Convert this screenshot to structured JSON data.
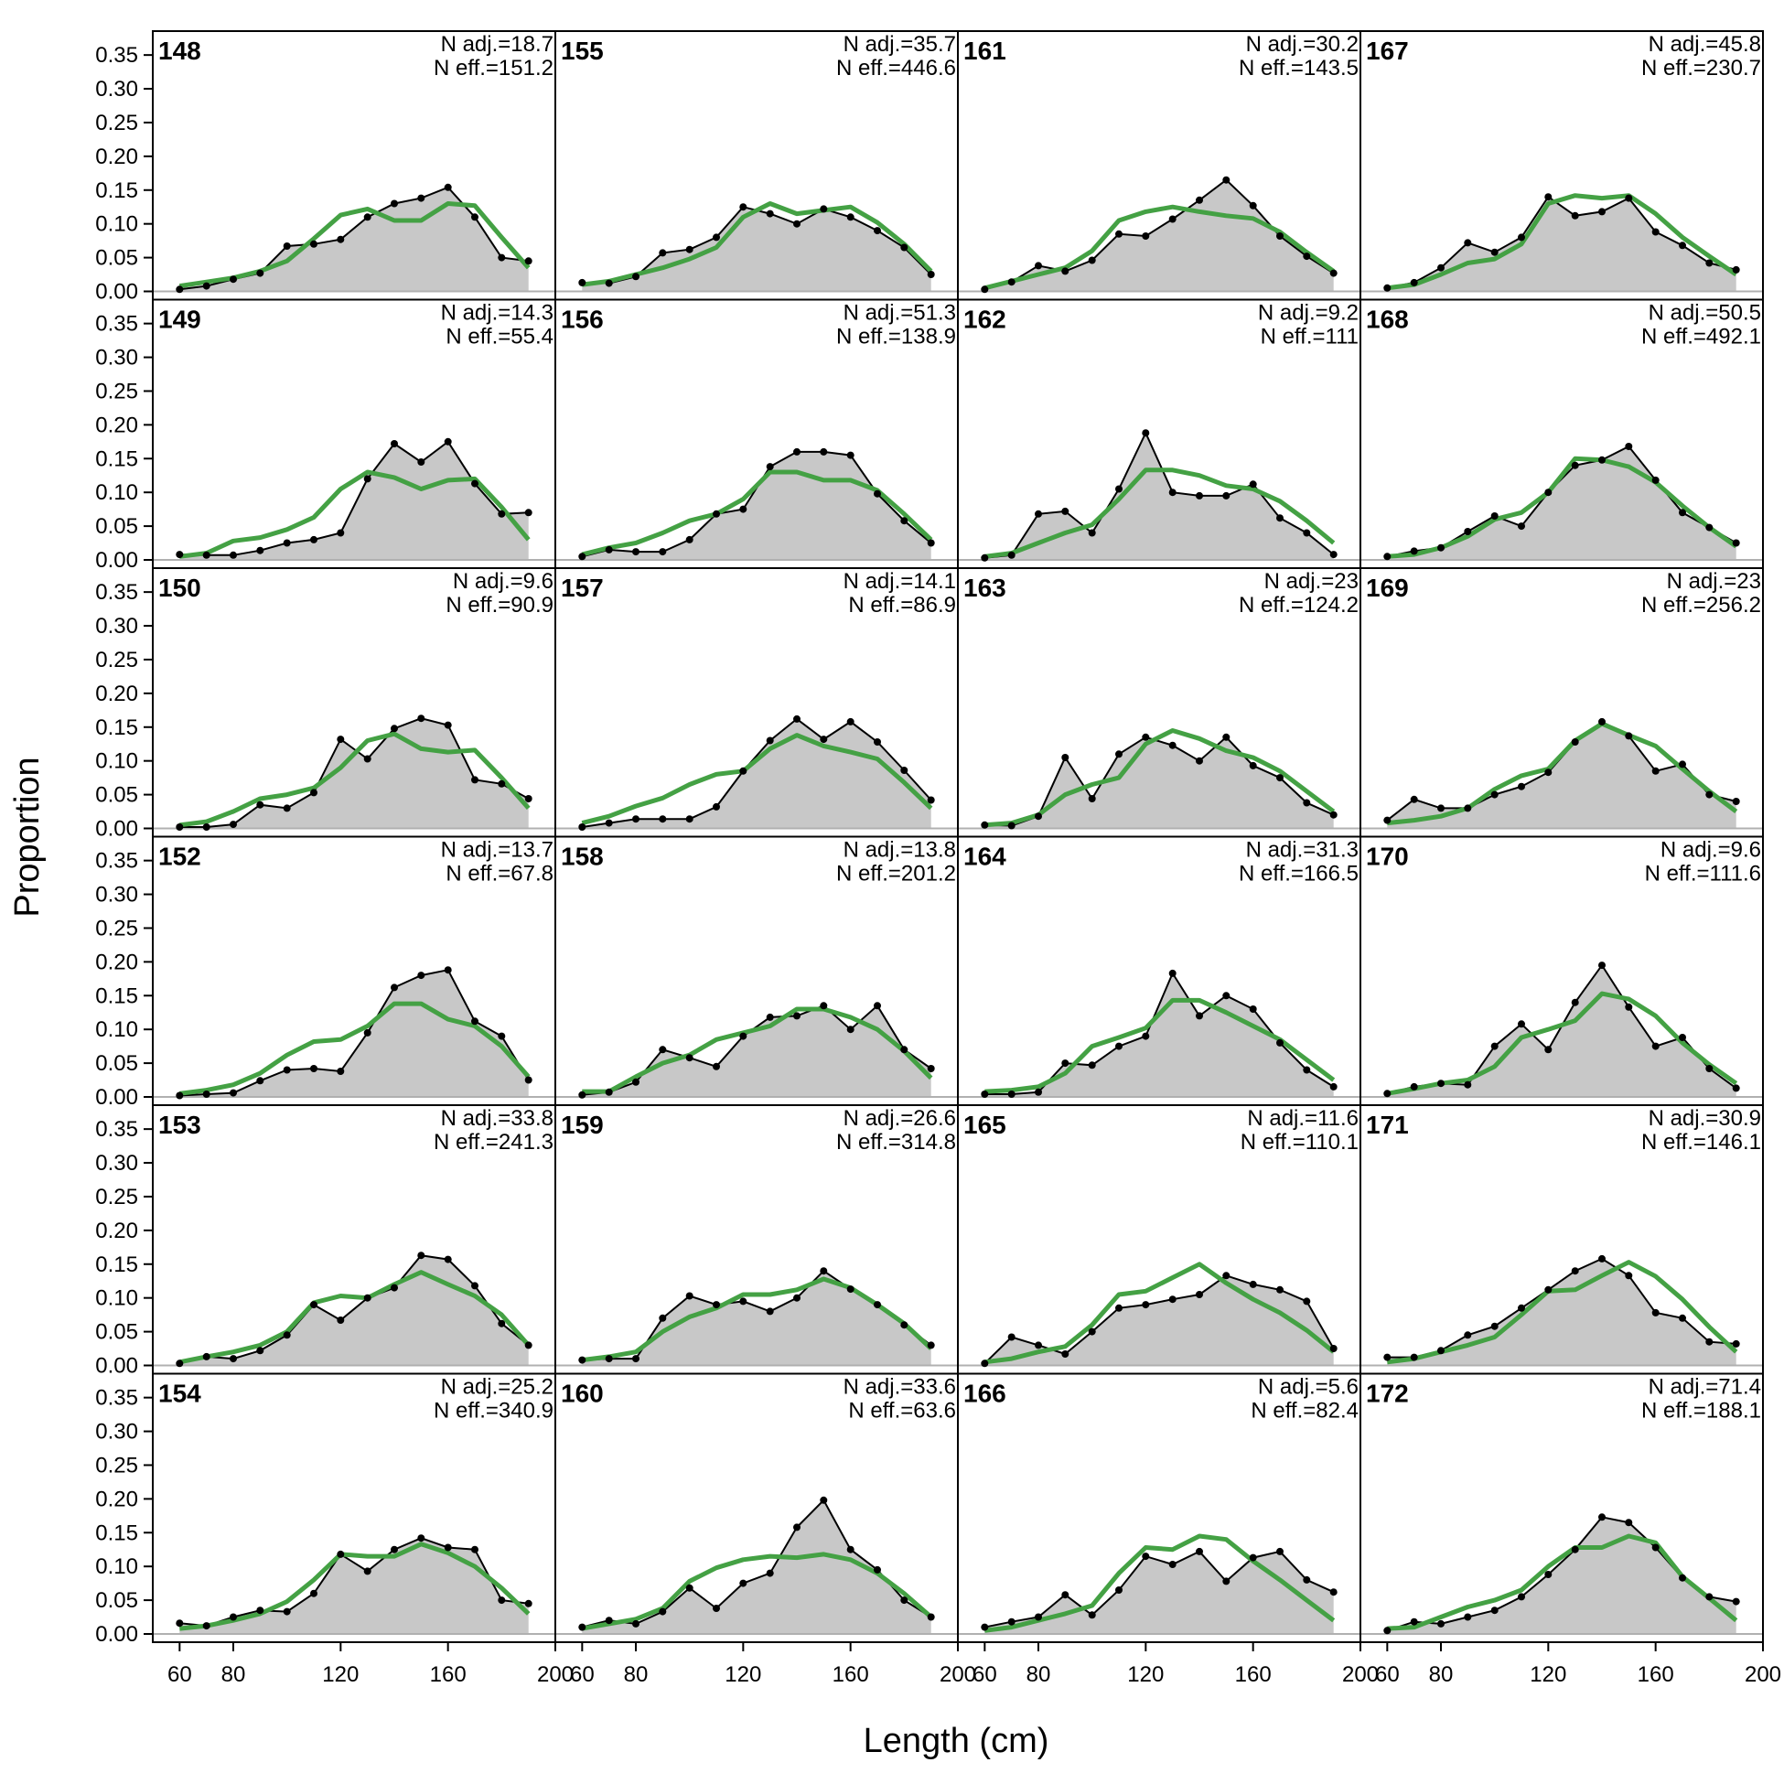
{
  "colors": {
    "observed_fill": "#c8c8c8",
    "observed_line": "#000000",
    "expected_line": "#44a144",
    "zero_line": "#b0b0b0"
  },
  "chart_data": {
    "type": "area",
    "xlabel": "Length (cm)",
    "ylabel": "Proportion",
    "xlim": [
      50,
      200
    ],
    "ylim": [
      0,
      0.38
    ],
    "x_ticks": [
      60,
      80,
      120,
      160,
      200
    ],
    "y_ticks": [
      "0.00",
      "0.05",
      "0.10",
      "0.15",
      "0.20",
      "0.25",
      "0.30",
      "0.35"
    ],
    "grid": false,
    "x": [
      60,
      70,
      80,
      90,
      100,
      110,
      120,
      130,
      140,
      150,
      160,
      170,
      180,
      190
    ],
    "columns": 4,
    "rows": 6,
    "panels": [
      {
        "label": "148",
        "n_adj": "N adj.=18.7",
        "n_eff": "N eff.=151.2",
        "observed": [
          0.003,
          0.008,
          0.018,
          0.027,
          0.067,
          0.07,
          0.077,
          0.11,
          0.13,
          0.138,
          0.154,
          0.11,
          0.05,
          0.045
        ],
        "expected": [
          0.008,
          0.014,
          0.02,
          0.03,
          0.045,
          0.078,
          0.113,
          0.122,
          0.105,
          0.105,
          0.13,
          0.127,
          0.08,
          0.035
        ]
      },
      {
        "label": "155",
        "n_adj": "N adj.=35.7",
        "n_eff": "N eff.=446.6",
        "observed": [
          0.013,
          0.012,
          0.022,
          0.057,
          0.062,
          0.08,
          0.125,
          0.115,
          0.1,
          0.122,
          0.11,
          0.09,
          0.065,
          0.025
        ],
        "expected": [
          0.01,
          0.015,
          0.025,
          0.035,
          0.048,
          0.065,
          0.11,
          0.13,
          0.115,
          0.12,
          0.125,
          0.102,
          0.07,
          0.03
        ]
      },
      {
        "label": "161",
        "n_adj": "N adj.=30.2",
        "n_eff": "N eff.=143.5",
        "observed": [
          0.003,
          0.014,
          0.038,
          0.03,
          0.046,
          0.085,
          0.082,
          0.107,
          0.135,
          0.165,
          0.127,
          0.082,
          0.052,
          0.027
        ],
        "expected": [
          0.005,
          0.015,
          0.025,
          0.035,
          0.06,
          0.105,
          0.118,
          0.125,
          0.118,
          0.112,
          0.108,
          0.088,
          0.058,
          0.03
        ]
      },
      {
        "label": "167",
        "n_adj": "N adj.=45.8",
        "n_eff": "N eff.=230.7",
        "observed": [
          0.005,
          0.013,
          0.035,
          0.072,
          0.058,
          0.08,
          0.14,
          0.112,
          0.118,
          0.138,
          0.088,
          0.068,
          0.042,
          0.032
        ],
        "expected": [
          0.005,
          0.01,
          0.025,
          0.042,
          0.048,
          0.07,
          0.13,
          0.142,
          0.138,
          0.142,
          0.115,
          0.08,
          0.052,
          0.025
        ]
      },
      {
        "label": "149",
        "n_adj": "N adj.=14.3",
        "n_eff": "N eff.=55.4",
        "observed": [
          0.008,
          0.007,
          0.007,
          0.014,
          0.025,
          0.03,
          0.04,
          0.12,
          0.172,
          0.145,
          0.175,
          0.113,
          0.068,
          0.07
        ],
        "expected": [
          0.005,
          0.01,
          0.028,
          0.033,
          0.045,
          0.063,
          0.105,
          0.13,
          0.122,
          0.105,
          0.118,
          0.12,
          0.078,
          0.03
        ]
      },
      {
        "label": "156",
        "n_adj": "N adj.=51.3",
        "n_eff": "N eff.=138.9",
        "observed": [
          0.005,
          0.015,
          0.012,
          0.012,
          0.03,
          0.068,
          0.075,
          0.138,
          0.16,
          0.16,
          0.155,
          0.098,
          0.058,
          0.025
        ],
        "expected": [
          0.008,
          0.018,
          0.025,
          0.04,
          0.058,
          0.068,
          0.09,
          0.13,
          0.13,
          0.118,
          0.118,
          0.103,
          0.068,
          0.03
        ]
      },
      {
        "label": "162",
        "n_adj": "N adj.=9.2",
        "n_eff": "N eff.=111",
        "observed": [
          0.003,
          0.007,
          0.068,
          0.072,
          0.04,
          0.105,
          0.188,
          0.1,
          0.095,
          0.095,
          0.112,
          0.062,
          0.04,
          0.008
        ],
        "expected": [
          0.005,
          0.01,
          0.025,
          0.04,
          0.052,
          0.09,
          0.133,
          0.133,
          0.125,
          0.11,
          0.105,
          0.087,
          0.058,
          0.025
        ]
      },
      {
        "label": "168",
        "n_adj": "N adj.=50.5",
        "n_eff": "N eff.=492.1",
        "observed": [
          0.005,
          0.013,
          0.018,
          0.042,
          0.065,
          0.05,
          0.1,
          0.14,
          0.148,
          0.168,
          0.118,
          0.07,
          0.048,
          0.025
        ],
        "expected": [
          0.005,
          0.008,
          0.018,
          0.035,
          0.06,
          0.07,
          0.1,
          0.15,
          0.148,
          0.138,
          0.115,
          0.08,
          0.048,
          0.02
        ]
      },
      {
        "label": "150",
        "n_adj": "N adj.=9.6",
        "n_eff": "N eff.=90.9",
        "observed": [
          0.002,
          0.002,
          0.006,
          0.035,
          0.03,
          0.053,
          0.132,
          0.103,
          0.148,
          0.163,
          0.153,
          0.072,
          0.066,
          0.044
        ],
        "expected": [
          0.005,
          0.01,
          0.025,
          0.044,
          0.05,
          0.06,
          0.09,
          0.13,
          0.14,
          0.118,
          0.113,
          0.116,
          0.075,
          0.03
        ]
      },
      {
        "label": "157",
        "n_adj": "N adj.=14.1",
        "n_eff": "N eff.=86.9",
        "observed": [
          0.002,
          0.008,
          0.014,
          0.014,
          0.014,
          0.032,
          0.085,
          0.13,
          0.162,
          0.132,
          0.158,
          0.128,
          0.086,
          0.042
        ],
        "expected": [
          0.008,
          0.018,
          0.033,
          0.045,
          0.065,
          0.08,
          0.085,
          0.118,
          0.138,
          0.122,
          0.113,
          0.103,
          0.068,
          0.03
        ]
      },
      {
        "label": "163",
        "n_adj": "N adj.=23",
        "n_eff": "N eff.=124.2",
        "observed": [
          0.005,
          0.004,
          0.018,
          0.105,
          0.044,
          0.11,
          0.135,
          0.123,
          0.1,
          0.135,
          0.093,
          0.075,
          0.038,
          0.02
        ],
        "expected": [
          0.005,
          0.008,
          0.02,
          0.05,
          0.065,
          0.075,
          0.125,
          0.145,
          0.133,
          0.115,
          0.105,
          0.085,
          0.055,
          0.025
        ]
      },
      {
        "label": "169",
        "n_adj": "N adj.=23",
        "n_eff": "N eff.=256.2",
        "observed": [
          0.012,
          0.043,
          0.03,
          0.03,
          0.05,
          0.062,
          0.083,
          0.128,
          0.158,
          0.137,
          0.085,
          0.095,
          0.05,
          0.04
        ],
        "expected": [
          0.008,
          0.012,
          0.018,
          0.03,
          0.058,
          0.078,
          0.088,
          0.13,
          0.155,
          0.138,
          0.122,
          0.088,
          0.055,
          0.025
        ]
      },
      {
        "label": "152",
        "n_adj": "N adj.=13.7",
        "n_eff": "N eff.=67.8",
        "observed": [
          0.002,
          0.004,
          0.006,
          0.024,
          0.04,
          0.042,
          0.038,
          0.095,
          0.162,
          0.18,
          0.188,
          0.112,
          0.09,
          0.025
        ],
        "expected": [
          0.005,
          0.01,
          0.018,
          0.035,
          0.062,
          0.082,
          0.085,
          0.105,
          0.138,
          0.138,
          0.115,
          0.105,
          0.075,
          0.03
        ]
      },
      {
        "label": "158",
        "n_adj": "N adj.=13.8",
        "n_eff": "N eff.=201.2",
        "observed": [
          0.003,
          0.007,
          0.022,
          0.07,
          0.058,
          0.045,
          0.09,
          0.118,
          0.12,
          0.135,
          0.1,
          0.135,
          0.07,
          0.042
        ],
        "expected": [
          0.008,
          0.008,
          0.03,
          0.05,
          0.062,
          0.085,
          0.095,
          0.105,
          0.13,
          0.13,
          0.118,
          0.1,
          0.068,
          0.028
        ]
      },
      {
        "label": "164",
        "n_adj": "N adj.=31.3",
        "n_eff": "N eff.=166.5",
        "observed": [
          0.004,
          0.004,
          0.007,
          0.05,
          0.047,
          0.075,
          0.09,
          0.183,
          0.12,
          0.15,
          0.13,
          0.08,
          0.04,
          0.015
        ],
        "expected": [
          0.008,
          0.01,
          0.015,
          0.035,
          0.075,
          0.088,
          0.102,
          0.143,
          0.143,
          0.125,
          0.105,
          0.085,
          0.055,
          0.025
        ]
      },
      {
        "label": "170",
        "n_adj": "N adj.=9.6",
        "n_eff": "N eff.=111.6",
        "observed": [
          0.005,
          0.015,
          0.02,
          0.018,
          0.075,
          0.108,
          0.07,
          0.14,
          0.195,
          0.133,
          0.075,
          0.088,
          0.042,
          0.013
        ],
        "expected": [
          0.005,
          0.012,
          0.02,
          0.025,
          0.045,
          0.088,
          0.1,
          0.113,
          0.153,
          0.145,
          0.12,
          0.08,
          0.048,
          0.02
        ]
      },
      {
        "label": "153",
        "n_adj": "N adj.=33.8",
        "n_eff": "N eff.=241.3",
        "observed": [
          0.003,
          0.013,
          0.01,
          0.022,
          0.045,
          0.09,
          0.067,
          0.1,
          0.115,
          0.163,
          0.157,
          0.118,
          0.062,
          0.03
        ],
        "expected": [
          0.005,
          0.013,
          0.02,
          0.03,
          0.05,
          0.093,
          0.103,
          0.1,
          0.12,
          0.138,
          0.12,
          0.103,
          0.075,
          0.03
        ]
      },
      {
        "label": "159",
        "n_adj": "N adj.=26.6",
        "n_eff": "N eff.=314.8",
        "observed": [
          0.008,
          0.01,
          0.01,
          0.07,
          0.103,
          0.09,
          0.095,
          0.08,
          0.1,
          0.14,
          0.113,
          0.09,
          0.06,
          0.03
        ],
        "expected": [
          0.008,
          0.013,
          0.02,
          0.05,
          0.072,
          0.085,
          0.105,
          0.105,
          0.112,
          0.128,
          0.115,
          0.09,
          0.062,
          0.025
        ]
      },
      {
        "label": "165",
        "n_adj": "N adj.=11.6",
        "n_eff": "N eff.=110.1",
        "observed": [
          0.003,
          0.042,
          0.03,
          0.017,
          0.05,
          0.085,
          0.09,
          0.098,
          0.105,
          0.133,
          0.12,
          0.112,
          0.095,
          0.025
        ],
        "expected": [
          0.005,
          0.01,
          0.02,
          0.028,
          0.06,
          0.105,
          0.11,
          0.13,
          0.15,
          0.122,
          0.098,
          0.078,
          0.052,
          0.02
        ]
      },
      {
        "label": "171",
        "n_adj": "N adj.=30.9",
        "n_eff": "N eff.=146.1",
        "observed": [
          0.012,
          0.012,
          0.022,
          0.045,
          0.058,
          0.085,
          0.112,
          0.14,
          0.158,
          0.133,
          0.078,
          0.07,
          0.035,
          0.032
        ],
        "expected": [
          0.005,
          0.01,
          0.02,
          0.03,
          0.042,
          0.075,
          0.11,
          0.112,
          0.133,
          0.153,
          0.132,
          0.098,
          0.057,
          0.02
        ]
      },
      {
        "label": "154",
        "n_adj": "N adj.=25.2",
        "n_eff": "N eff.=340.9",
        "observed": [
          0.016,
          0.012,
          0.025,
          0.035,
          0.033,
          0.06,
          0.118,
          0.093,
          0.125,
          0.142,
          0.128,
          0.125,
          0.05,
          0.045
        ],
        "expected": [
          0.008,
          0.012,
          0.02,
          0.03,
          0.048,
          0.08,
          0.118,
          0.115,
          0.115,
          0.133,
          0.12,
          0.1,
          0.068,
          0.03
        ]
      },
      {
        "label": "160",
        "n_adj": "N adj.=33.6",
        "n_eff": "N eff.=63.6",
        "observed": [
          0.01,
          0.02,
          0.015,
          0.033,
          0.068,
          0.038,
          0.075,
          0.09,
          0.158,
          0.198,
          0.125,
          0.095,
          0.05,
          0.025
        ],
        "expected": [
          0.008,
          0.015,
          0.022,
          0.038,
          0.078,
          0.098,
          0.11,
          0.115,
          0.113,
          0.118,
          0.11,
          0.09,
          0.06,
          0.025
        ]
      },
      {
        "label": "166",
        "n_adj": "N adj.=5.6",
        "n_eff": "N eff.=82.4",
        "observed": [
          0.01,
          0.018,
          0.025,
          0.058,
          0.028,
          0.065,
          0.115,
          0.103,
          0.122,
          0.078,
          0.113,
          0.122,
          0.08,
          0.062
        ],
        "expected": [
          0.005,
          0.01,
          0.02,
          0.03,
          0.042,
          0.09,
          0.128,
          0.125,
          0.145,
          0.14,
          0.108,
          0.08,
          0.05,
          0.02
        ]
      },
      {
        "label": "172",
        "n_adj": "N adj.=71.4",
        "n_eff": "N eff.=188.1",
        "observed": [
          0.005,
          0.018,
          0.015,
          0.025,
          0.035,
          0.055,
          0.088,
          0.125,
          0.173,
          0.165,
          0.128,
          0.083,
          0.055,
          0.048
        ],
        "expected": [
          0.008,
          0.01,
          0.025,
          0.04,
          0.05,
          0.065,
          0.1,
          0.128,
          0.128,
          0.145,
          0.135,
          0.085,
          0.053,
          0.02
        ]
      }
    ]
  }
}
